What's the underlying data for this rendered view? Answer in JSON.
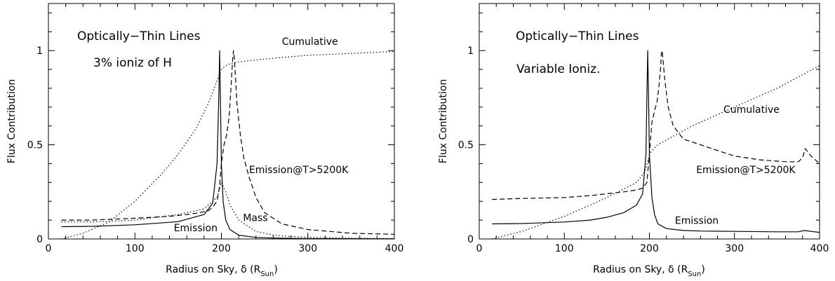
{
  "chart_data": [
    {
      "type": "line",
      "title": "Optically−Thin Lines",
      "subtitle": "3% ioniz of H",
      "xlabel": "Radius on Sky, δ (R",
      "xlabel_sub": "Sun",
      "ylabel": "Flux Contribution",
      "xlim": [
        0,
        400
      ],
      "ylim": [
        0,
        1.25
      ],
      "xticks": [
        "0",
        "100",
        "200",
        "300",
        "400"
      ],
      "yticks": [
        "0",
        "0.5",
        "1"
      ],
      "annotations": [
        {
          "text": "Cumulative",
          "x": 270,
          "y": 1.03
        },
        {
          "text": "Emission@T>5200K",
          "x": 232,
          "y": 0.35
        },
        {
          "text": "Mass",
          "x": 225,
          "y": 0.095
        },
        {
          "text": "Emission",
          "x": 145,
          "y": 0.04
        }
      ],
      "series": [
        {
          "name": "Emission",
          "style": "solid",
          "x": [
            15,
            50,
            100,
            150,
            180,
            190,
            195,
            197,
            198,
            199,
            200,
            202,
            205,
            210,
            220,
            240,
            260,
            300,
            350,
            400
          ],
          "y": [
            0.065,
            0.067,
            0.075,
            0.092,
            0.13,
            0.19,
            0.4,
            0.75,
            1.0,
            0.7,
            0.4,
            0.2,
            0.1,
            0.05,
            0.02,
            0.008,
            0.005,
            0.002,
            0.001,
            0.001
          ]
        },
        {
          "name": "Emission@T>5200K",
          "style": "dashed",
          "x": [
            15,
            50,
            100,
            140,
            160,
            175,
            185,
            190,
            195,
            198,
            200,
            203,
            206,
            209,
            211,
            213,
            214,
            215,
            216,
            218,
            222,
            226,
            232,
            240,
            250,
            270,
            300,
            350,
            400
          ],
          "y": [
            0.1,
            0.1,
            0.11,
            0.12,
            0.13,
            0.14,
            0.15,
            0.17,
            0.2,
            0.28,
            0.4,
            0.5,
            0.55,
            0.65,
            0.8,
            0.95,
            1.0,
            0.96,
            0.88,
            0.72,
            0.55,
            0.43,
            0.33,
            0.22,
            0.14,
            0.08,
            0.05,
            0.03,
            0.025
          ]
        },
        {
          "name": "Mass",
          "style": "dotted",
          "x": [
            15,
            50,
            100,
            150,
            180,
            195,
            200,
            205,
            210,
            220,
            240,
            260,
            300,
            350,
            400
          ],
          "y": [
            0.09,
            0.09,
            0.1,
            0.13,
            0.16,
            0.22,
            0.3,
            0.25,
            0.18,
            0.1,
            0.04,
            0.02,
            0.008,
            0.004,
            0.002
          ]
        },
        {
          "name": "Cumulative",
          "style": "dotted",
          "x": [
            15,
            40,
            70,
            100,
            130,
            150,
            170,
            185,
            195,
            200,
            205,
            210,
            220,
            240,
            260,
            300,
            350,
            400
          ],
          "y": [
            0.0,
            0.03,
            0.09,
            0.2,
            0.34,
            0.45,
            0.58,
            0.72,
            0.84,
            0.9,
            0.92,
            0.93,
            0.94,
            0.95,
            0.96,
            0.975,
            0.985,
            0.995
          ]
        }
      ]
    },
    {
      "type": "line",
      "title": "Optically−Thin Lines",
      "subtitle": "Variable Ioniz.",
      "xlabel": "Radius on Sky, δ (R",
      "xlabel_sub": "Sun",
      "ylabel": "Flux Contribution",
      "xlim": [
        0,
        400
      ],
      "ylim": [
        0,
        1.25
      ],
      "xticks": [
        "0",
        "100",
        "200",
        "300",
        "400"
      ],
      "yticks": [
        "0",
        "0.5",
        "1"
      ],
      "annotations": [
        {
          "text": "Cumulative",
          "x": 287,
          "y": 0.67
        },
        {
          "text": "Emission@T>5200K",
          "x": 255,
          "y": 0.35
        },
        {
          "text": "Emission",
          "x": 230,
          "y": 0.08
        }
      ],
      "series": [
        {
          "name": "Emission",
          "style": "solid",
          "x": [
            15,
            50,
            100,
            130,
            150,
            170,
            185,
            192,
            196,
            197,
            198,
            199,
            200,
            203,
            206,
            210,
            220,
            240,
            260,
            300,
            350,
            375,
            382,
            390,
            400
          ],
          "y": [
            0.08,
            0.082,
            0.09,
            0.1,
            0.115,
            0.14,
            0.18,
            0.24,
            0.45,
            0.75,
            1.0,
            0.75,
            0.45,
            0.22,
            0.13,
            0.08,
            0.055,
            0.045,
            0.042,
            0.04,
            0.038,
            0.038,
            0.045,
            0.04,
            0.035
          ]
        },
        {
          "name": "Emission@T>5200K",
          "style": "dashed",
          "x": [
            15,
            50,
            100,
            130,
            150,
            170,
            185,
            192,
            197,
            200,
            203,
            206,
            209,
            211,
            213,
            214,
            215,
            216,
            218,
            222,
            228,
            240,
            260,
            280,
            300,
            330,
            360,
            375,
            380,
            383,
            390,
            400
          ],
          "y": [
            0.21,
            0.215,
            0.22,
            0.23,
            0.24,
            0.25,
            0.26,
            0.27,
            0.3,
            0.45,
            0.62,
            0.68,
            0.73,
            0.8,
            0.9,
            0.98,
            1.0,
            0.95,
            0.85,
            0.7,
            0.6,
            0.53,
            0.5,
            0.47,
            0.44,
            0.42,
            0.41,
            0.41,
            0.43,
            0.48,
            0.44,
            0.4
          ]
        },
        {
          "name": "Cumulative",
          "style": "dotted",
          "x": [
            15,
            50,
            100,
            150,
            185,
            195,
            200,
            205,
            210,
            250,
            300,
            350,
            400
          ],
          "y": [
            0.0,
            0.04,
            0.12,
            0.22,
            0.3,
            0.36,
            0.45,
            0.48,
            0.5,
            0.6,
            0.7,
            0.8,
            0.92
          ]
        }
      ]
    }
  ]
}
